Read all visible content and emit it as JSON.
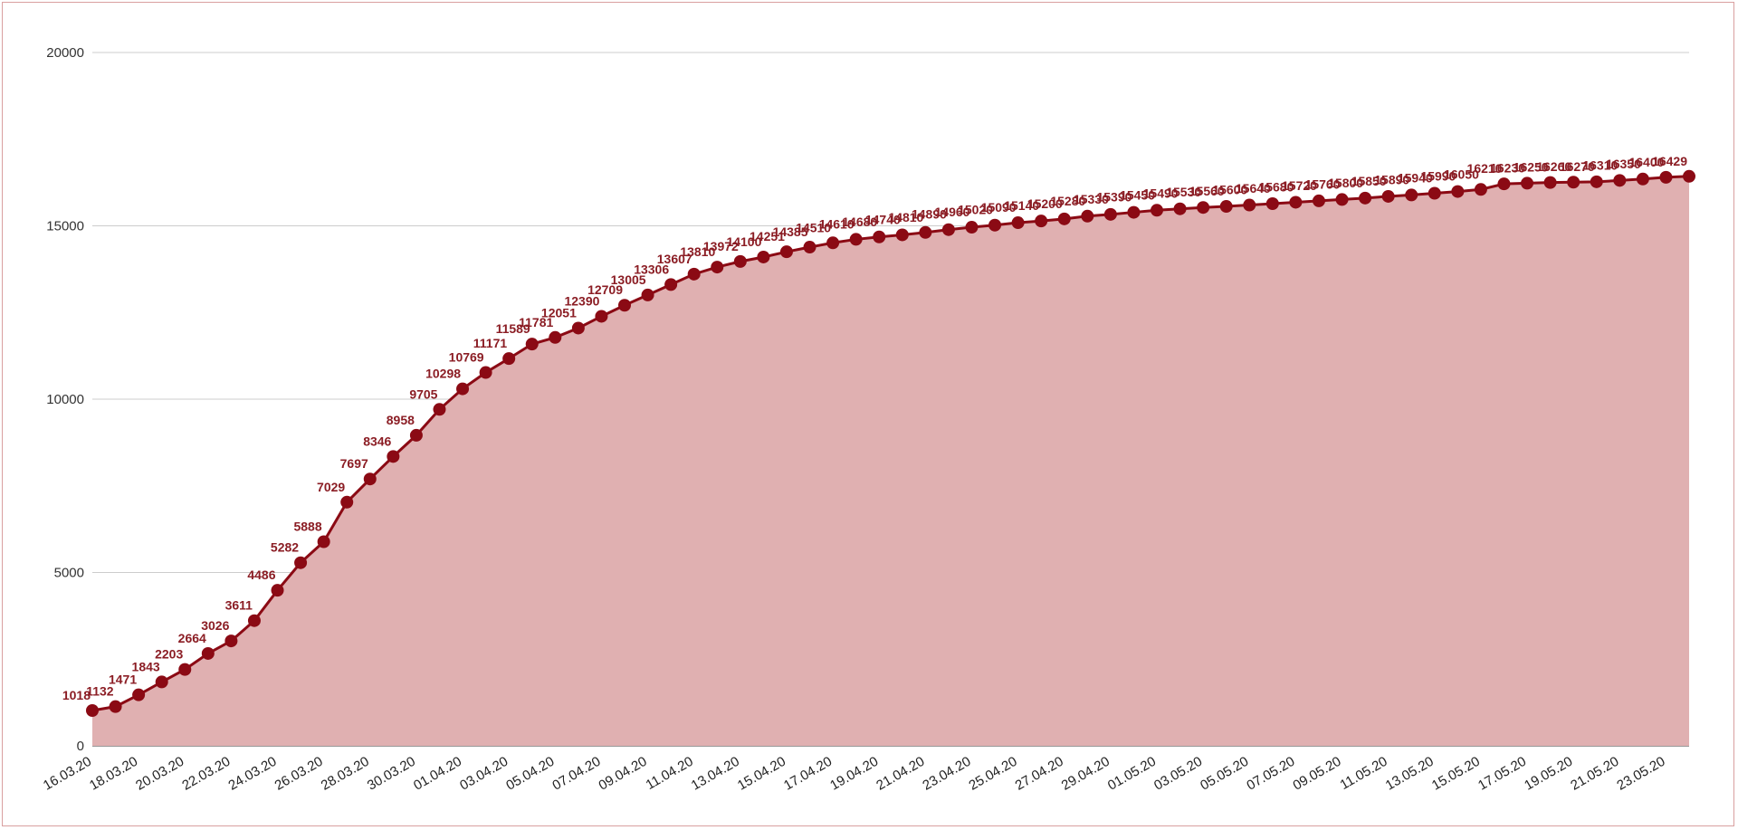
{
  "chart_data": {
    "type": "area",
    "title": "",
    "xlabel": "",
    "ylabel": "",
    "ylim": [
      0,
      20000
    ],
    "yticks": [
      0,
      5000,
      10000,
      15000,
      20000
    ],
    "grid": true,
    "legend": "none",
    "colors": {
      "line": "#8b0a14",
      "fill": "#e0b0b1",
      "marker": "#8b0a14",
      "label": "#8b1d24"
    },
    "x": [
      "16.03.20",
      "17.03.20",
      "18.03.20",
      "19.03.20",
      "20.03.20",
      "21.03.20",
      "22.03.20",
      "23.03.20",
      "24.03.20",
      "25.03.20",
      "26.03.20",
      "27.03.20",
      "28.03.20",
      "29.03.20",
      "30.03.20",
      "31.03.20",
      "01.04.20",
      "02.04.20",
      "03.04.20",
      "04.04.20",
      "05.04.20",
      "06.04.20",
      "07.04.20",
      "08.04.20",
      "09.04.20",
      "10.04.20",
      "11.04.20",
      "12.04.20",
      "13.04.20",
      "14.04.20",
      "15.04.20",
      "16.04.20",
      "17.04.20",
      "18.04.20",
      "19.04.20",
      "20.04.20",
      "21.04.20",
      "22.04.20",
      "23.04.20",
      "24.04.20",
      "25.04.20",
      "26.04.20",
      "27.04.20",
      "28.04.20",
      "29.04.20",
      "30.04.20",
      "01.05.20",
      "02.05.20",
      "03.05.20",
      "04.05.20",
      "05.05.20",
      "06.05.20",
      "07.05.20",
      "08.05.20",
      "09.05.20",
      "10.05.20",
      "11.05.20",
      "12.05.20",
      "13.05.20",
      "14.05.20",
      "15.05.20",
      "16.05.20",
      "17.05.20",
      "18.05.20",
      "19.05.20",
      "20.05.20",
      "21.05.20",
      "22.05.20",
      "23.05.20",
      "24.05.20"
    ],
    "xtick_labels": [
      "16.03.20",
      "18.03.20",
      "20.03.20",
      "22.03.20",
      "24.03.20",
      "26.03.20",
      "28.03.20",
      "30.03.20",
      "01.04.20",
      "03.04.20",
      "05.04.20",
      "07.04.20",
      "09.04.20",
      "11.04.20",
      "13.04.20",
      "15.04.20",
      "17.04.20",
      "19.04.20",
      "21.04.20",
      "23.04.20",
      "25.04.20",
      "27.04.20",
      "29.04.20",
      "01.05.20",
      "03.05.20",
      "05.05.20",
      "07.05.20",
      "09.05.20",
      "11.05.20",
      "13.05.20",
      "15.05.20",
      "17.05.20",
      "19.05.20",
      "21.05.20",
      "23.05.20"
    ],
    "values": [
      1018,
      1132,
      1471,
      1843,
      2203,
      2664,
      3026,
      3611,
      4486,
      5282,
      5888,
      7029,
      7697,
      8346,
      8958,
      9705,
      10298,
      10769,
      11171,
      11589,
      11781,
      12051,
      12390,
      12709,
      13005,
      13306,
      13607,
      13810,
      13972,
      14100,
      14251,
      14385,
      14510,
      14610,
      14680,
      14740,
      14810,
      14890,
      14960,
      15020,
      15090,
      15140,
      15200,
      15280,
      15330,
      15390,
      15450,
      15490,
      15530,
      15560,
      15600,
      15640,
      15680,
      15720,
      15760,
      15800,
      15850,
      15890,
      15940,
      15990,
      16050,
      16210,
      16230,
      16250,
      16260,
      16270,
      16310,
      16350,
      16400,
      16429
    ]
  }
}
